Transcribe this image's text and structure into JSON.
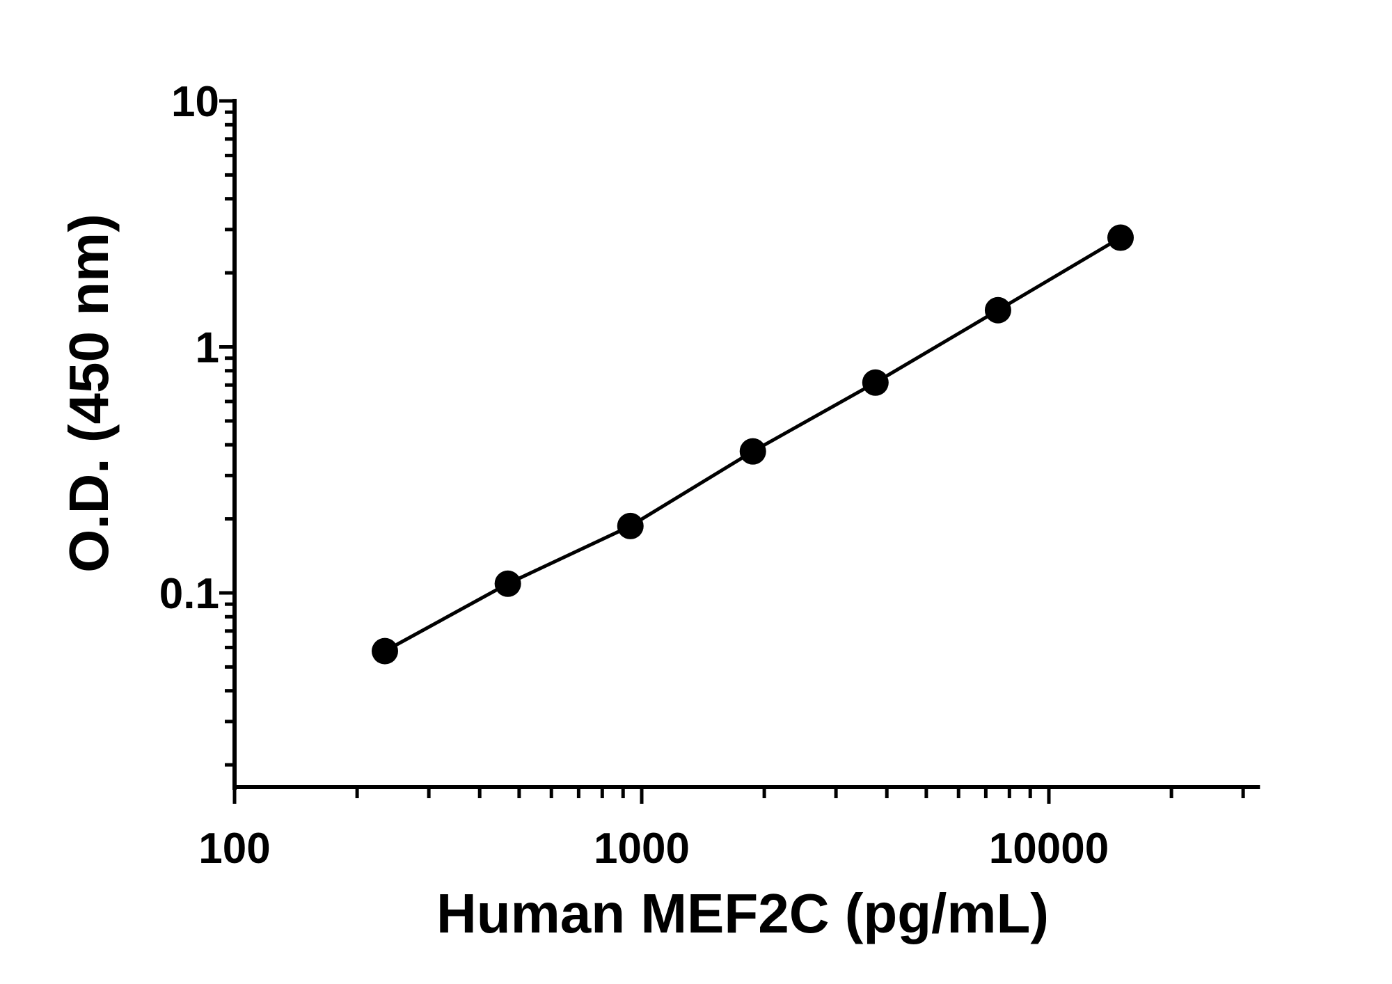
{
  "chart_data": {
    "type": "line",
    "title": "",
    "xlabel": "Human MEF2C (pg/mL)",
    "ylabel": "O.D. (450 nm)",
    "x_scale": "log",
    "y_scale": "log",
    "xlim": [
      100,
      33000
    ],
    "ylim": [
      0.016,
      10
    ],
    "x_tick_labels": [
      "100",
      "1000",
      "10000"
    ],
    "y_tick_labels": [
      "0.1",
      "1",
      "10"
    ],
    "grid": false,
    "markers": "filled-circle",
    "color": "#000000",
    "series": [
      {
        "x": [
          234,
          469,
          938,
          1875,
          3750,
          7500,
          15000
        ],
        "y": [
          0.058,
          0.109,
          0.187,
          0.376,
          0.716,
          1.41,
          2.78
        ]
      }
    ]
  }
}
